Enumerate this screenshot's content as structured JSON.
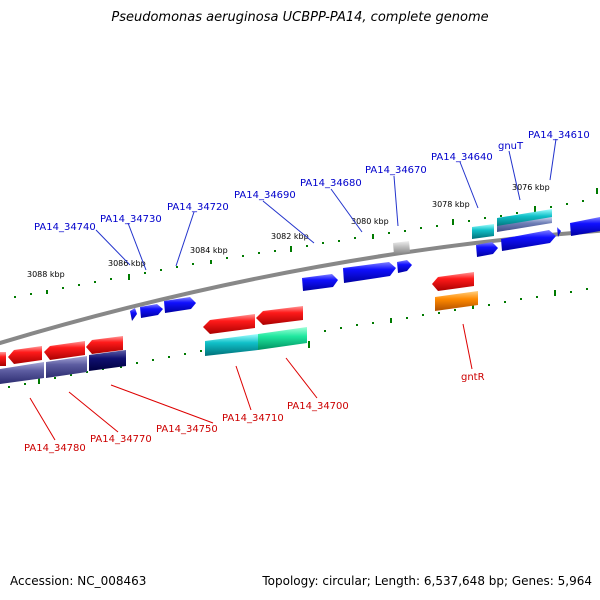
{
  "title": "Pseudomonas aeruginosa UCBPP-PA14, complete genome",
  "footer": {
    "accession": "Accession: NC_008463",
    "topology": "Topology: circular; Length: 6,537,648 bp; Genes: 5,964"
  },
  "scale_labels": [
    "3088 kbp",
    "3086 kbp",
    "3084 kbp",
    "3082 kbp",
    "3080 kbp",
    "3078 kbp",
    "3076 kbp"
  ],
  "gene_labels_forward": [
    "PA14_34740",
    "PA14_34730",
    "PA14_34720",
    "PA14_34690",
    "PA14_34680",
    "PA14_34670",
    "PA14_34640",
    "gnuT",
    "PA14_34610"
  ],
  "gene_labels_reverse": [
    "PA14_34780",
    "PA14_34770",
    "PA14_34750",
    "PA14_34710",
    "PA14_34700",
    "gntR"
  ],
  "colors": {
    "forward_label": "#0000cc",
    "reverse_label": "#cc0000",
    "tick": "#007a00",
    "backbone": "#888888"
  }
}
